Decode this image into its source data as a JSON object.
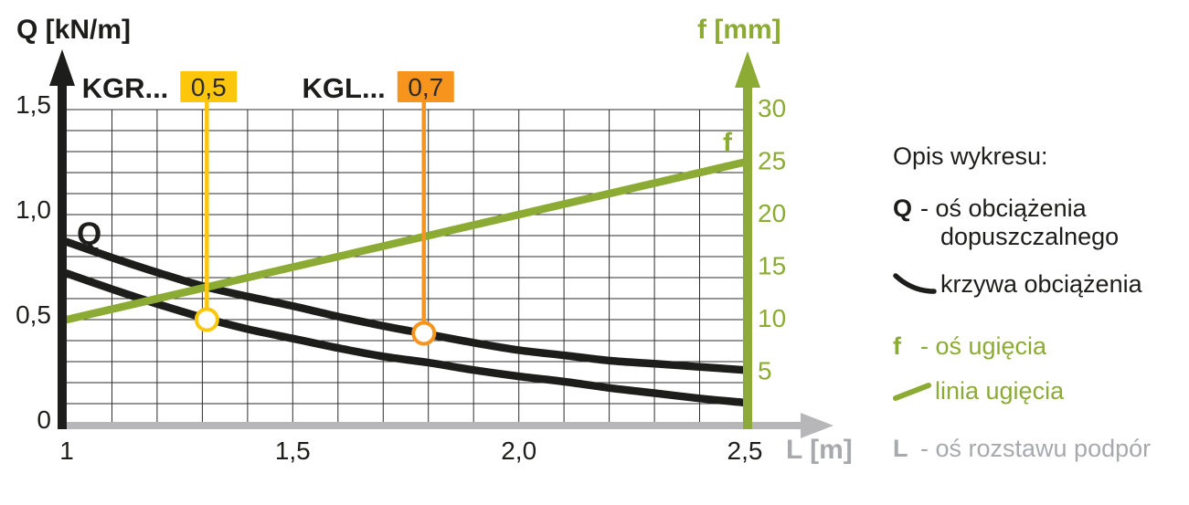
{
  "chart_data": {
    "type": "line",
    "title": "",
    "x_axis": {
      "label": "L [m]",
      "min": 1.0,
      "max": 2.5,
      "grid_step": 0.1,
      "ticks": [
        "1",
        "1,5",
        "2,0",
        "2,5"
      ],
      "tick_values": [
        1.0,
        1.5,
        2.0,
        2.5
      ]
    },
    "y_axis_left": {
      "label": "Q [kN/m]",
      "min": 0,
      "max": 1.5,
      "grid_step": 0.1,
      "ticks": [
        "0",
        "0,5",
        "1,0",
        "1,5"
      ],
      "tick_values": [
        0,
        0.5,
        1.0,
        1.5
      ]
    },
    "y_axis_right": {
      "label": "f [mm]",
      "min": 0,
      "max": 30,
      "ticks": [
        "5",
        "10",
        "15",
        "20",
        "25",
        "30"
      ],
      "tick_values": [
        5,
        10,
        15,
        20,
        25,
        30
      ]
    },
    "grid": true,
    "series": [
      {
        "name": "KGL... 0,7 — krzywa obciążenia",
        "axis": "left",
        "color": "#1d1d1b",
        "x": [
          1.0,
          1.1,
          1.2,
          1.3,
          1.4,
          1.5,
          1.6,
          1.7,
          1.8,
          1.9,
          2.0,
          2.1,
          2.2,
          2.3,
          2.4,
          2.5
        ],
        "y": [
          0.87,
          0.795,
          0.725,
          0.66,
          0.61,
          0.565,
          0.515,
          0.47,
          0.43,
          0.39,
          0.355,
          0.33,
          0.305,
          0.29,
          0.275,
          0.26
        ]
      },
      {
        "name": "KGR... 0,5 — krzywa obciążenia",
        "axis": "left",
        "color": "#1d1d1b",
        "x": [
          1.0,
          1.1,
          1.2,
          1.3,
          1.4,
          1.5,
          1.6,
          1.7,
          1.8,
          1.9,
          2.0,
          2.1,
          2.2,
          2.3,
          2.4,
          2.5
        ],
        "y": [
          0.72,
          0.645,
          0.575,
          0.51,
          0.455,
          0.41,
          0.365,
          0.325,
          0.295,
          0.26,
          0.23,
          0.205,
          0.175,
          0.15,
          0.125,
          0.105
        ]
      },
      {
        "name": "linia ugięcia",
        "axis": "right",
        "color": "#8cab35",
        "x": [
          1.0,
          2.5
        ],
        "y": [
          10,
          25
        ]
      }
    ],
    "markers": [
      {
        "label": "KGR...",
        "value": "0,5",
        "color": "#fcc60d",
        "L": 1.31,
        "Q": 0.5
      },
      {
        "label": "KGL...",
        "value": "0,7",
        "color": "#f6941d",
        "L": 1.79,
        "Q": 0.435
      }
    ],
    "inline_labels": [
      {
        "text": "Q"
      },
      {
        "text": "f"
      }
    ]
  },
  "legend": {
    "title": "Opis wykresu:",
    "q": {
      "symbol": "Q",
      "text": "- oś obciążenia",
      "text2": "dopuszczalnego"
    },
    "curve": {
      "text": "krzywa obciążenia"
    },
    "f": {
      "symbol": "f",
      "text": "- oś ugięcia"
    },
    "line": {
      "text": "linia ugięcia"
    },
    "l": {
      "symbol": "L",
      "text": "- oś rozstawu podpór"
    }
  },
  "colors": {
    "black": "#1d1d1b",
    "green": "#8cab35",
    "axis_gray": "#b7b7b9",
    "text_gray": "#a7a9ac",
    "yellow": "#fcc60d",
    "orange": "#f6941d",
    "grid": "#2d2d2d"
  }
}
